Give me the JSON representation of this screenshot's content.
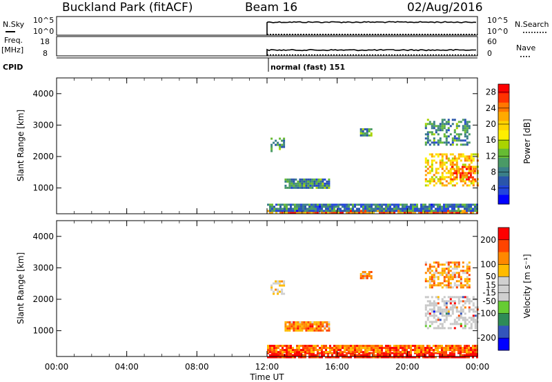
{
  "header": {
    "station": "Buckland Park (fitACF)",
    "beam": "Beam 16",
    "date": "02/Aug/2016"
  },
  "colors": {
    "power_scale": [
      "#ff0000",
      "#ff3300",
      "#ff7700",
      "#ffaa00",
      "#ffd400",
      "#ffee00",
      "#aad400",
      "#66bb33",
      "#4a9a66",
      "#3a7f88",
      "#2a55aa",
      "#2244dd",
      "#0000ff"
    ],
    "velocity_scale": [
      "#ff0000",
      "#ff4400",
      "#ff8800",
      "#ffbb00",
      "#d0d0d0",
      "#d0d0d0",
      "#66cc33",
      "#2e8b57",
      "#3355bb",
      "#0000ff"
    ],
    "ground_scatter": "#c8c8c8"
  },
  "chart_data": [
    {
      "type": "line",
      "name": "nsky-nsearch",
      "left_label": "N.Sky",
      "right_label": "N.Search",
      "left_ticks": [
        "10^5",
        "10^0"
      ],
      "right_ticks": [
        "10^5",
        "10^0"
      ],
      "x_start_hours": 12.0,
      "x_end_hours": 24.0,
      "solid_level_fraction": 0.7,
      "dotted_level_fraction": 0.05
    },
    {
      "type": "line",
      "name": "freq-nave",
      "left_label": "Freq.",
      "left_unit": "[MHz]",
      "right_label": "Nave",
      "left_ticks": [
        "18",
        "8"
      ],
      "right_ticks": [
        "60",
        "0"
      ],
      "x_start_hours": 12.0,
      "x_end_hours": 24.0,
      "solid_level_fraction": 0.3,
      "dotted_level_fraction": 0.05
    },
    {
      "type": "table",
      "name": "cpid",
      "label": "CPID",
      "mode_text": "normal (fast) 151",
      "start_hours": 12.0
    },
    {
      "type": "heatmap",
      "name": "power",
      "ylabel": "Slant Range [km]",
      "yticks": [
        1000,
        2000,
        3000,
        4000
      ],
      "ylim": [
        180,
        4500
      ],
      "colorbar_label": "Power [dB]",
      "colorbar_ticks": [
        4,
        8,
        12,
        16,
        20,
        24,
        28
      ],
      "colorbar_range": [
        0,
        30
      ],
      "regions": [
        {
          "t0": 12.0,
          "t1": 24.0,
          "r0": 180,
          "r1": 300,
          "level": 0.8
        },
        {
          "t0": 12.0,
          "t1": 24.0,
          "r0": 300,
          "r1": 500,
          "level": 0.25
        },
        {
          "t0": 12.2,
          "t1": 13.0,
          "r0": 2200,
          "r1": 2600,
          "level": 0.3
        },
        {
          "t0": 13.0,
          "t1": 15.5,
          "r0": 1000,
          "r1": 1300,
          "level": 0.3
        },
        {
          "t0": 17.3,
          "t1": 18.0,
          "r0": 2700,
          "r1": 2900,
          "level": 0.35
        },
        {
          "t0": 21.0,
          "t1": 24.0,
          "r0": 1100,
          "r1": 2100,
          "level": 0.65
        },
        {
          "t0": 22.5,
          "t1": 23.8,
          "r0": 1250,
          "r1": 1700,
          "level": 0.82
        },
        {
          "t0": 21.0,
          "t1": 23.5,
          "r0": 2400,
          "r1": 3200,
          "level": 0.3
        }
      ]
    },
    {
      "type": "heatmap",
      "name": "velocity",
      "ylabel": "Slant Range [km]",
      "yticks": [
        1000,
        2000,
        3000,
        4000
      ],
      "ylim": [
        180,
        4500
      ],
      "colorbar_label": "Velocity [m s⁻¹]",
      "colorbar_ticks": [
        200,
        100,
        50,
        15,
        -15,
        -50,
        -100,
        -200
      ],
      "colorbar_range": [
        -250,
        250
      ],
      "regions": [
        {
          "t0": 12.0,
          "t1": 24.0,
          "r0": 180,
          "r1": 320,
          "level": 0.95
        },
        {
          "t0": 12.0,
          "t1": 24.0,
          "r0": 320,
          "r1": 550,
          "level": 0.8
        },
        {
          "t0": 12.2,
          "t1": 13.0,
          "r0": 2200,
          "r1": 2600,
          "level": 0.65
        },
        {
          "t0": 13.0,
          "t1": 15.5,
          "r0": 1000,
          "r1": 1300,
          "level": 0.75
        },
        {
          "t0": 17.3,
          "t1": 18.0,
          "r0": 2700,
          "r1": 2900,
          "level": 0.7
        },
        {
          "t0": 21.0,
          "t1": 24.0,
          "r0": 1100,
          "r1": 2100,
          "level": "gs"
        },
        {
          "t0": 21.0,
          "t1": 23.5,
          "r0": 2400,
          "r1": 3200,
          "level": 0.7
        }
      ]
    }
  ],
  "x_axis": {
    "label": "Time UT",
    "ticks": [
      "00:00",
      "04:00",
      "08:00",
      "12:00",
      "16:00",
      "20:00",
      "00:00"
    ],
    "range_hours": [
      0,
      24
    ]
  }
}
